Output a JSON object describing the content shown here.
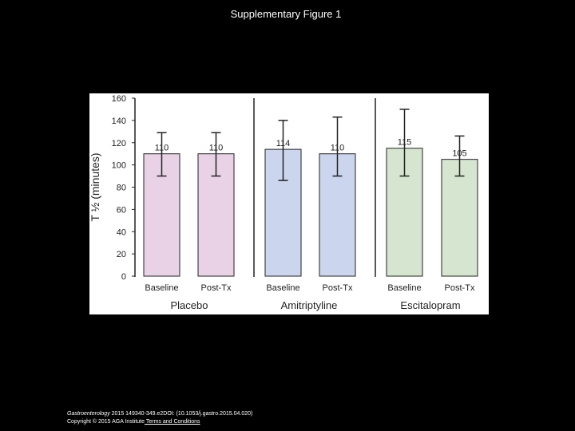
{
  "title": "Supplementary Figure 1",
  "footer": {
    "journal": "Gastroenterology",
    "citation": " 2015 149340-349.e2DOI: (10.1053/j.gastro.2015.04.020)",
    "copyright": "Copyright © 2015 AGA Institute",
    "terms_link": " Terms and Conditions"
  },
  "chart_data": {
    "type": "bar",
    "ylabel": "T ½ (minutes)",
    "ylim": [
      0,
      160
    ],
    "yticks": [
      0,
      20,
      40,
      60,
      80,
      100,
      120,
      140,
      160
    ],
    "grid": false,
    "groups": [
      {
        "name": "Placebo",
        "color": "#ead2e6",
        "bars": [
          {
            "category": "Baseline",
            "value": 110,
            "label": "110",
            "error_low": 90,
            "error_high": 129
          },
          {
            "category": "Post-Tx",
            "value": 110,
            "label": "110",
            "error_low": 90,
            "error_high": 129
          }
        ]
      },
      {
        "name": "Amitriptyline",
        "color": "#ccd5ee",
        "bars": [
          {
            "category": "Baseline",
            "value": 114,
            "label": "114",
            "error_low": 86,
            "error_high": 140
          },
          {
            "category": "Post-Tx",
            "value": 110,
            "label": "110",
            "error_low": 90,
            "error_high": 143
          }
        ]
      },
      {
        "name": "Escitalopram",
        "color": "#d5e5cf",
        "bars": [
          {
            "category": "Baseline",
            "value": 115,
            "label": "115",
            "error_low": 90,
            "error_high": 150
          },
          {
            "category": "Post-Tx",
            "value": 105,
            "label": "105",
            "error_low": 90,
            "error_high": 126
          }
        ]
      }
    ]
  }
}
